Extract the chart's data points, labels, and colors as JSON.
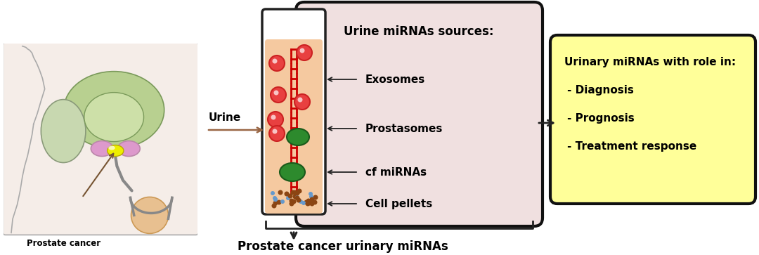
{
  "bg_color": "#ffffff",
  "prostate_label": "Prostate cancer",
  "urine_label": "Urine",
  "bottom_label": "Prostate cancer urinary miRNAs",
  "tube_title": "Urine miRNAs sources:",
  "sources": [
    "Exosomes",
    "Prostasomes",
    "cf miRNAs",
    "Cell pellets"
  ],
  "box_title": "Urinary miRNAs with role in:",
  "box_items": [
    "- Diagnosis",
    "- Prognosis",
    "- Treatment response"
  ],
  "tube_fill_color": "#f5c9a0",
  "panel_fill_color": "#f0e0e0",
  "box_fill_color": "#ffff99",
  "box_edge_color": "#111111",
  "red_circle_color": "#e84040",
  "green_circle_color": "#2d8a2d",
  "dna_line_color": "#cc0000",
  "pellet_brown": "#8b4513",
  "pellet_blue": "#6699cc",
  "arrow_color": "#555555",
  "urine_arrow_color": "#996644"
}
